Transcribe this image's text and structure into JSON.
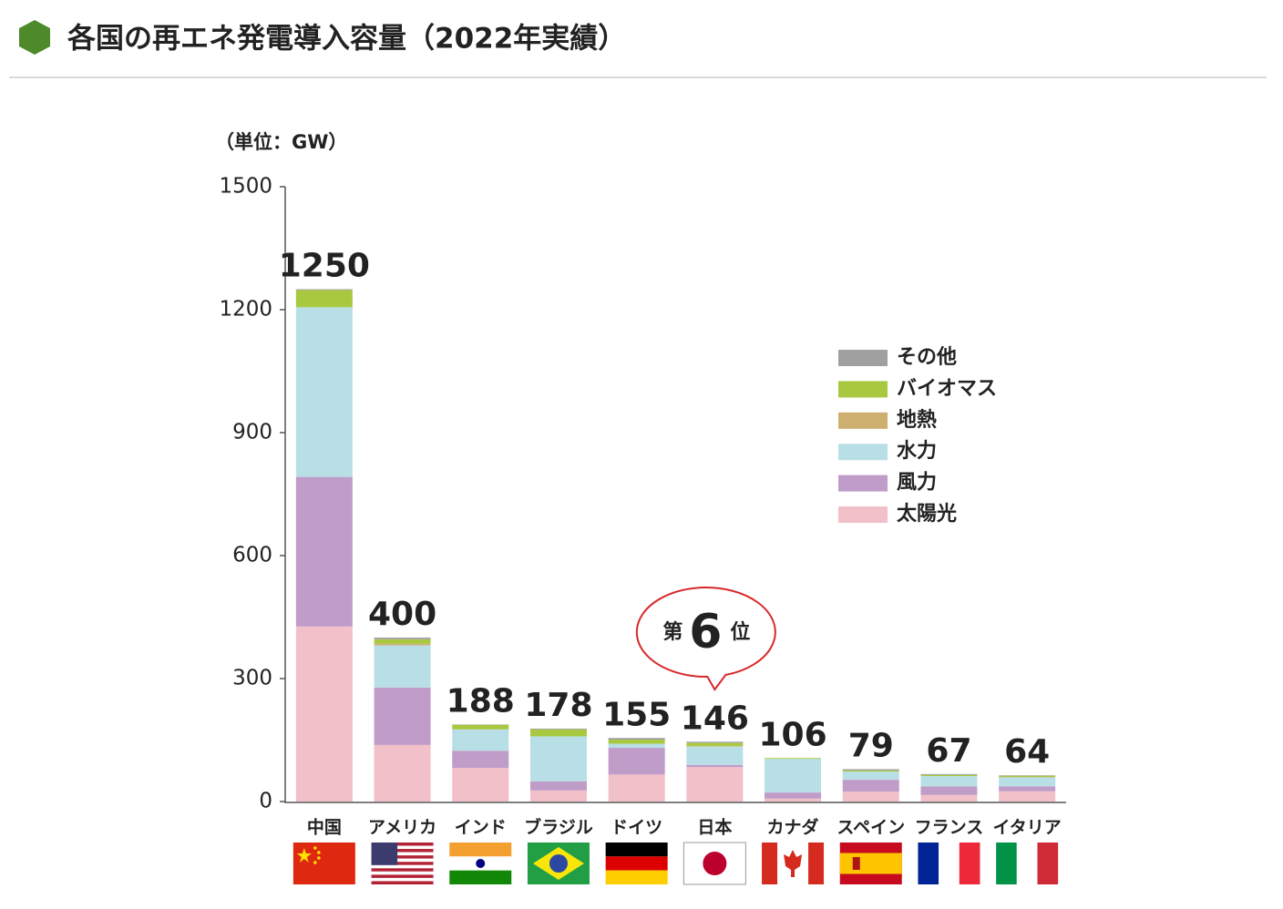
{
  "chart_data": {
    "type": "stacked_bar",
    "title": "各国の再エネ発電導入容量（2022年実績）",
    "unit_label": "（単位：GW）",
    "categories": [
      "中国",
      "アメリカ",
      "インド",
      "ブラジル",
      "ドイツ",
      "日本",
      "カナダ",
      "スペイン",
      "フランス",
      "イタリア"
    ],
    "series": [
      {
        "name": "太陽光",
        "color": "#f2c0c8",
        "values": [
          427,
          138,
          82,
          27,
          66,
          84,
          7,
          24,
          16,
          25
        ]
      },
      {
        "name": "風力",
        "color": "#c09cc8",
        "values": [
          365,
          140,
          42,
          22,
          65,
          5,
          15,
          29,
          21,
          12
        ]
      },
      {
        "name": "水力",
        "color": "#b8dfe6",
        "values": [
          414,
          103,
          52,
          110,
          10,
          45,
          82,
          20,
          25,
          22
        ]
      },
      {
        "name": "地熱",
        "color": "#cdb070",
        "values": [
          0,
          4,
          0,
          0,
          0,
          1,
          0,
          0,
          0,
          1
        ]
      },
      {
        "name": "バイオマス",
        "color": "#a8c840",
        "values": [
          42,
          11,
          11,
          17,
          10,
          8,
          2,
          3,
          3,
          3
        ]
      },
      {
        "name": "その他",
        "color": "#a0a0a0",
        "values": [
          2,
          4,
          1,
          2,
          4,
          3,
          0,
          3,
          2,
          1
        ]
      }
    ],
    "totals": [
      1250,
      400,
      188,
      178,
      155,
      146,
      106,
      79,
      67,
      64
    ],
    "ylim": [
      0,
      1500
    ],
    "yticks": [
      0,
      300,
      600,
      900,
      1200,
      1500
    ],
    "grid": false,
    "legend": "right",
    "highlight": "日本",
    "highlight_color": "#d8282a",
    "annotation": {
      "prefix": "第",
      "rank": 6,
      "suffix": "位"
    }
  }
}
